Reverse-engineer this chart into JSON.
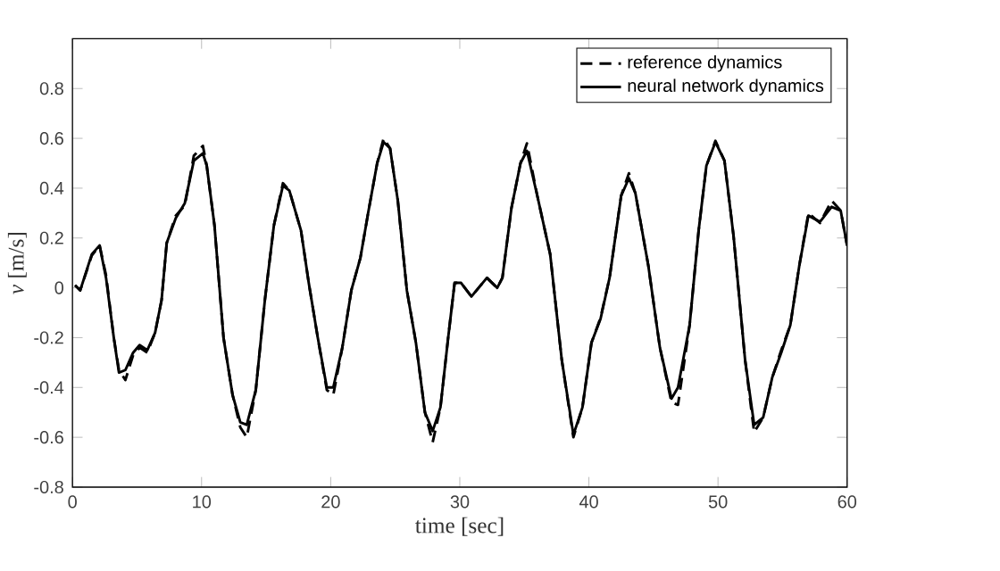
{
  "chart_data": {
    "type": "line",
    "xlabel": "time [sec]",
    "ylabel": "*v* [m/s]",
    "xlim": [
      0,
      60
    ],
    "ylim": [
      -0.8,
      1
    ],
    "xticks": [
      0,
      10,
      20,
      30,
      40,
      50,
      60
    ],
    "yticks": [
      -0.8,
      -0.6,
      -0.4,
      -0.2,
      0,
      0.2,
      0.4,
      0.6,
      0.8
    ],
    "legend": "top right",
    "grid": false,
    "marker": "none",
    "x": [
      0.2,
      0.6,
      1.5,
      2.1,
      2.6,
      3.2,
      3.6,
      4.1,
      4.7,
      5.2,
      5.8,
      6.4,
      6.9,
      7.3,
      8.0,
      8.7,
      9.4,
      10.1,
      10.4,
      11.0,
      11.7,
      12.4,
      13.0,
      13.5,
      14.2,
      14.9,
      15.6,
      16.3,
      16.8,
      17.7,
      18.3,
      19.0,
      19.7,
      20.2,
      20.9,
      21.6,
      22.3,
      22.9,
      23.6,
      24.1,
      24.6,
      25.2,
      25.9,
      26.6,
      27.3,
      27.9,
      28.5,
      29.1,
      29.6,
      30.1,
      30.9,
      32.1,
      32.9,
      33.3,
      34.0,
      34.7,
      35.2,
      36.0,
      37.0,
      37.9,
      38.8,
      39.5,
      40.2,
      40.9,
      41.6,
      42.5,
      43.1,
      43.6,
      44.6,
      45.5,
      46.4,
      46.9,
      47.8,
      48.5,
      49.1,
      49.8,
      50.5,
      51.2,
      52.1,
      52.8,
      53.5,
      54.2,
      54.9,
      55.6,
      56.3,
      57.0,
      57.9,
      58.8,
      59.5,
      60.0
    ],
    "series": [
      {
        "name": "reference dynamics",
        "color": "#000000",
        "line_style": "dashed",
        "values": [
          0.01,
          -0.01,
          0.13,
          0.17,
          0.05,
          -0.2,
          -0.33,
          -0.37,
          -0.27,
          -0.24,
          -0.26,
          -0.18,
          -0.05,
          0.18,
          0.29,
          0.33,
          0.53,
          0.57,
          0.49,
          0.25,
          -0.2,
          -0.43,
          -0.56,
          -0.6,
          -0.41,
          -0.05,
          0.25,
          0.42,
          0.39,
          0.23,
          0.02,
          -0.2,
          -0.41,
          -0.43,
          -0.24,
          -0.01,
          0.12,
          0.3,
          0.5,
          0.6,
          0.56,
          0.35,
          -0.01,
          -0.22,
          -0.5,
          -0.62,
          -0.48,
          -0.2,
          0.02,
          0.02,
          -0.035,
          0.04,
          0.0,
          0.04,
          0.32,
          0.5,
          0.58,
          0.37,
          0.135,
          -0.29,
          -0.6,
          -0.48,
          -0.22,
          -0.12,
          0.04,
          0.37,
          0.46,
          0.38,
          0.09,
          -0.24,
          -0.46,
          -0.47,
          -0.15,
          0.23,
          0.49,
          0.59,
          0.51,
          0.21,
          -0.29,
          -0.58,
          -0.52,
          -0.36,
          -0.25,
          -0.15,
          0.09,
          0.3,
          0.26,
          0.35,
          0.31,
          0.17
        ]
      },
      {
        "name": "neural network dynamics",
        "color": "#000000",
        "line_style": "solid",
        "values": [
          0.01,
          -0.01,
          0.135,
          0.17,
          0.04,
          -0.2,
          -0.34,
          -0.33,
          -0.26,
          -0.23,
          -0.25,
          -0.18,
          -0.05,
          0.18,
          0.28,
          0.34,
          0.51,
          0.54,
          0.49,
          0.25,
          -0.2,
          -0.43,
          -0.54,
          -0.55,
          -0.41,
          -0.05,
          0.25,
          0.41,
          0.39,
          0.23,
          0.02,
          -0.2,
          -0.4,
          -0.4,
          -0.24,
          -0.01,
          0.12,
          0.3,
          0.5,
          0.585,
          0.56,
          0.35,
          -0.01,
          -0.22,
          -0.5,
          -0.575,
          -0.48,
          -0.2,
          0.02,
          0.02,
          -0.035,
          0.04,
          0.0,
          0.04,
          0.32,
          0.5,
          0.55,
          0.37,
          0.135,
          -0.29,
          -0.59,
          -0.48,
          -0.22,
          -0.125,
          0.04,
          0.37,
          0.44,
          0.38,
          0.09,
          -0.24,
          -0.445,
          -0.4,
          -0.15,
          0.23,
          0.49,
          0.585,
          0.51,
          0.21,
          -0.29,
          -0.55,
          -0.52,
          -0.36,
          -0.26,
          -0.15,
          0.09,
          0.29,
          0.265,
          0.325,
          0.31,
          0.17
        ]
      }
    ]
  }
}
